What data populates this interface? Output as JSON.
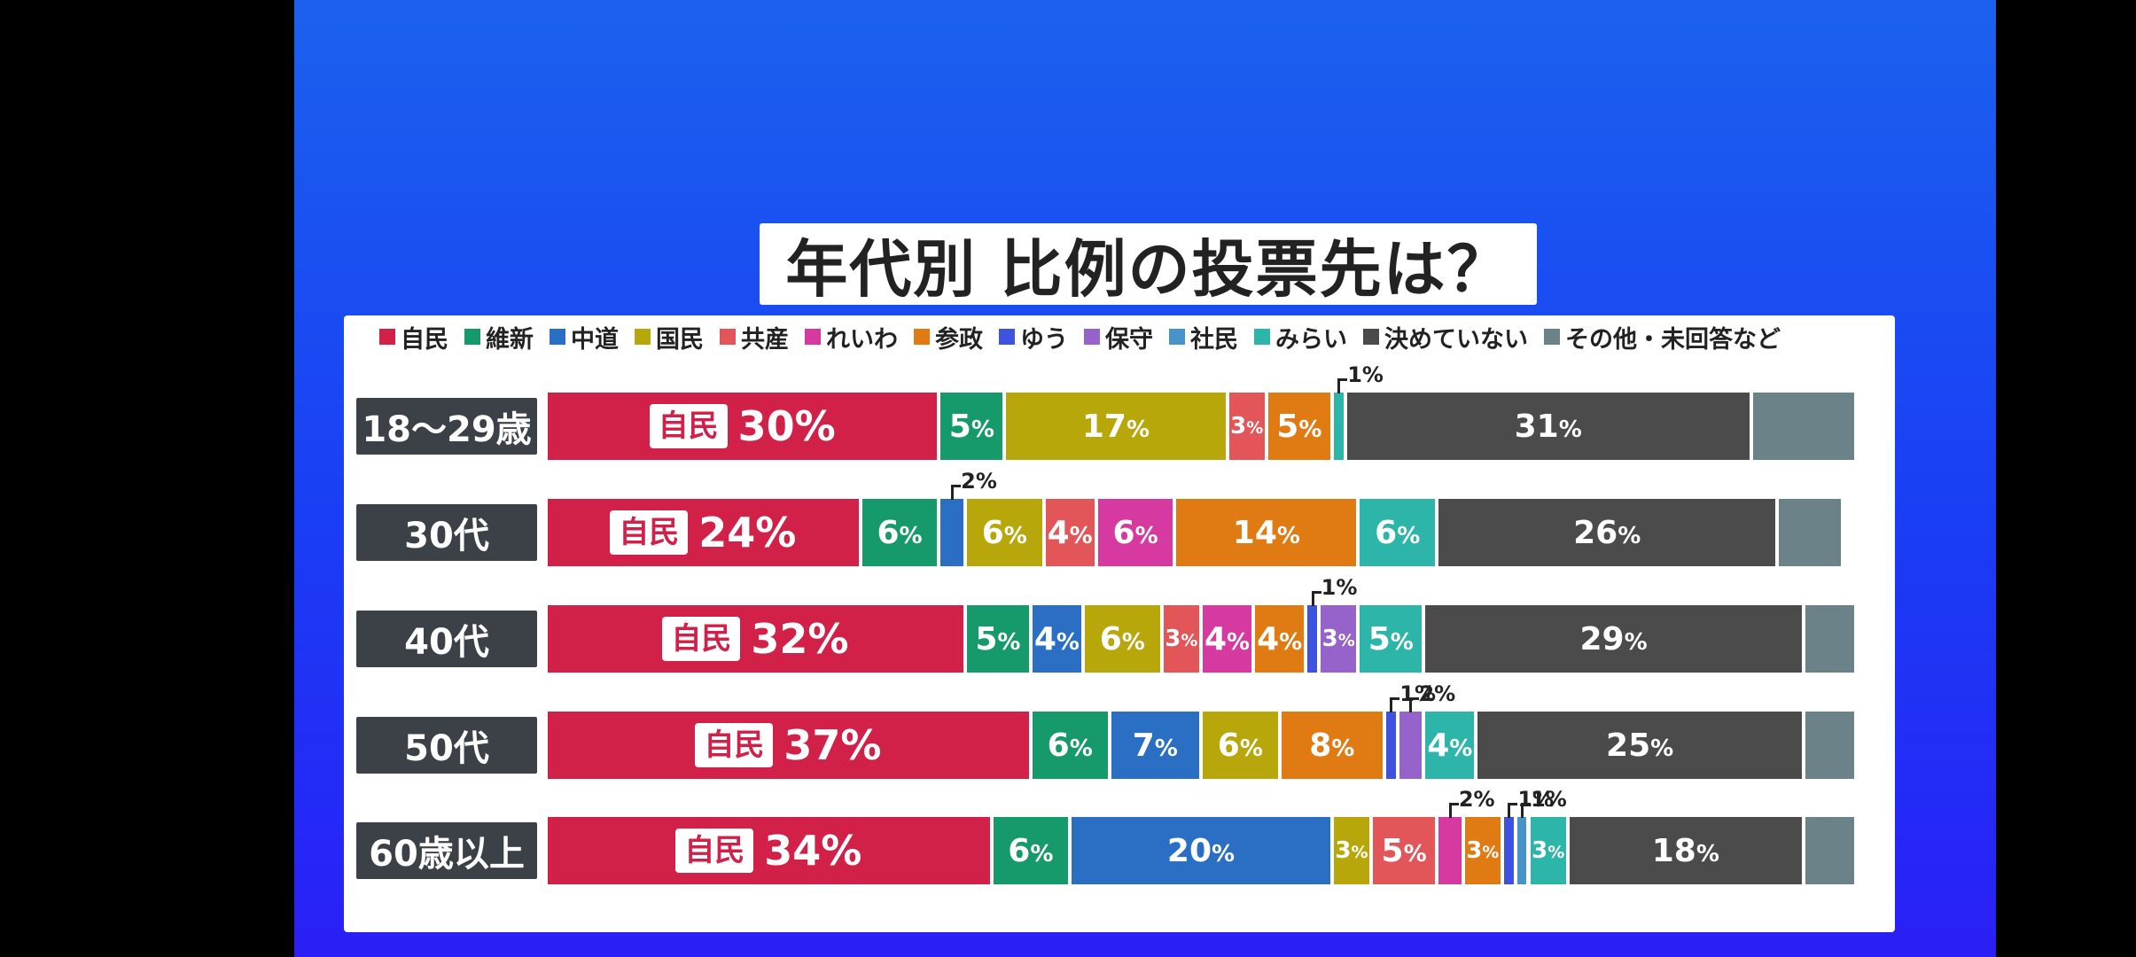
{
  "title": "年代別 比例の投票先は？",
  "colors": {
    "自民": "#d12149",
    "維新": "#179a6b",
    "中道": "#2b6fc4",
    "国民": "#b8a70a",
    "共産": "#e25558",
    "れいわ": "#d63aa0",
    "参政": "#e07b14",
    "ゆう": "#3d52e0",
    "保守": "#9563c9",
    "社民": "#4694c8",
    "みらい": "#2cb5a8",
    "決めていない": "#4b4b4b",
    "その他・未回答など": "#6b8288"
  },
  "chart_data": {
    "type": "bar",
    "orientation": "horizontal",
    "stacked": true,
    "title": "年代別 比例の投票先は？",
    "categories": [
      "18〜29歳",
      "30代",
      "40代",
      "50代",
      "60歳以上"
    ],
    "legend": [
      "自民",
      "維新",
      "中道",
      "国民",
      "共産",
      "れいわ",
      "参政",
      "ゆう",
      "保守",
      "社民",
      "みらい",
      "決めていない",
      "その他・未回答など"
    ],
    "legend_position": "top",
    "series": [
      {
        "name": "自民",
        "values": [
          30,
          24,
          32,
          37,
          34
        ]
      },
      {
        "name": "維新",
        "values": [
          5,
          6,
          5,
          6,
          6
        ]
      },
      {
        "name": "中道",
        "values": [
          0,
          2,
          4,
          7,
          20
        ]
      },
      {
        "name": "国民",
        "values": [
          17,
          6,
          6,
          6,
          3
        ]
      },
      {
        "name": "共産",
        "values": [
          3,
          4,
          3,
          0,
          5
        ]
      },
      {
        "name": "れいわ",
        "values": [
          0,
          6,
          4,
          0,
          2
        ]
      },
      {
        "name": "参政",
        "values": [
          5,
          14,
          4,
          8,
          3
        ]
      },
      {
        "name": "ゆう",
        "values": [
          0,
          0,
          1,
          1,
          1
        ]
      },
      {
        "name": "保守",
        "values": [
          0,
          0,
          3,
          2,
          0
        ]
      },
      {
        "name": "社民",
        "values": [
          0,
          0,
          0,
          0,
          1
        ]
      },
      {
        "name": "みらい",
        "values": [
          1,
          6,
          5,
          4,
          3
        ]
      },
      {
        "name": "決めていない",
        "values": [
          31,
          26,
          29,
          25,
          18
        ]
      },
      {
        "name": "その他・未回答など",
        "values": [
          8,
          5,
          4,
          4,
          4
        ]
      }
    ],
    "value_unit": "%",
    "xlim": [
      0,
      100
    ]
  }
}
